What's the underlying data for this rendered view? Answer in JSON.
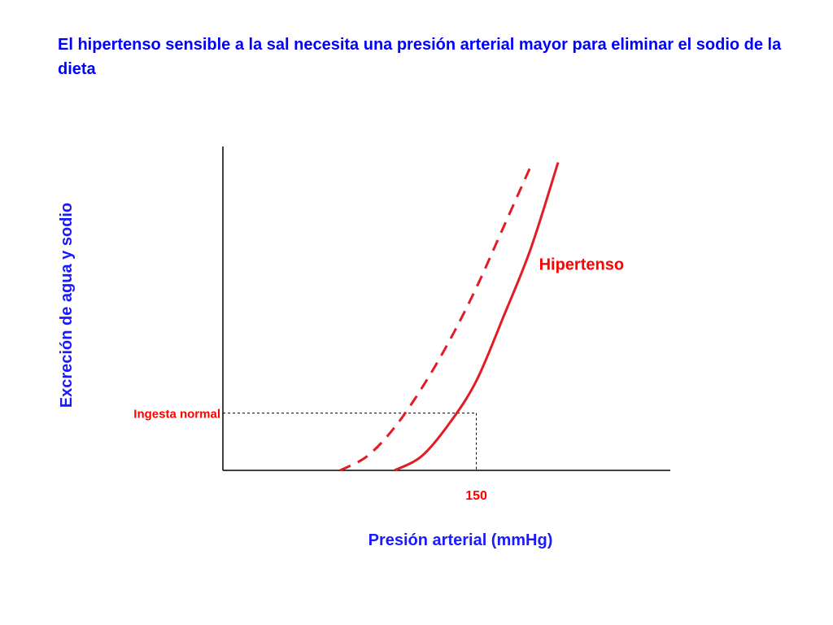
{
  "title": "El hipertenso sensible a la sal necesita una presión arterial mayor para eliminar el sodio de la dieta",
  "colors": {
    "title": "#0000ff",
    "axis_label": "#1a1aff",
    "curve": "#e31b23",
    "reference": "#000000"
  },
  "chart_data": {
    "type": "line",
    "title": "El hipertenso sensible a la sal necesita una presión arterial mayor para eliminar el sodio de la dieta",
    "xlabel": "Presión arterial (mmHg)",
    "ylabel": "Excreción de agua y sodio",
    "x_ticks": [
      150
    ],
    "y_reference_label": "Ingesta normal",
    "grid": false,
    "series": [
      {
        "style": "dashed",
        "x": [
          100,
          110,
          120,
          130,
          140,
          150,
          160,
          170
        ],
        "y": [
          0,
          0.4,
          1.2,
          2.3,
          3.6,
          5.1,
          6.8,
          8.5
        ]
      },
      {
        "name": "Hipertenso",
        "style": "solid",
        "x": [
          120,
          130,
          140,
          150,
          160,
          170,
          180
        ],
        "y": [
          0,
          0.4,
          1.3,
          2.5,
          4.3,
          6.2,
          8.6
        ]
      }
    ],
    "annotations": [
      {
        "text": "Hipertenso",
        "x": 173,
        "y": 5.6
      },
      {
        "text": "Ingesta normal",
        "x": 150,
        "y": 1.6,
        "style": "dashed-reference"
      },
      {
        "text": "150",
        "x": 150
      }
    ]
  }
}
